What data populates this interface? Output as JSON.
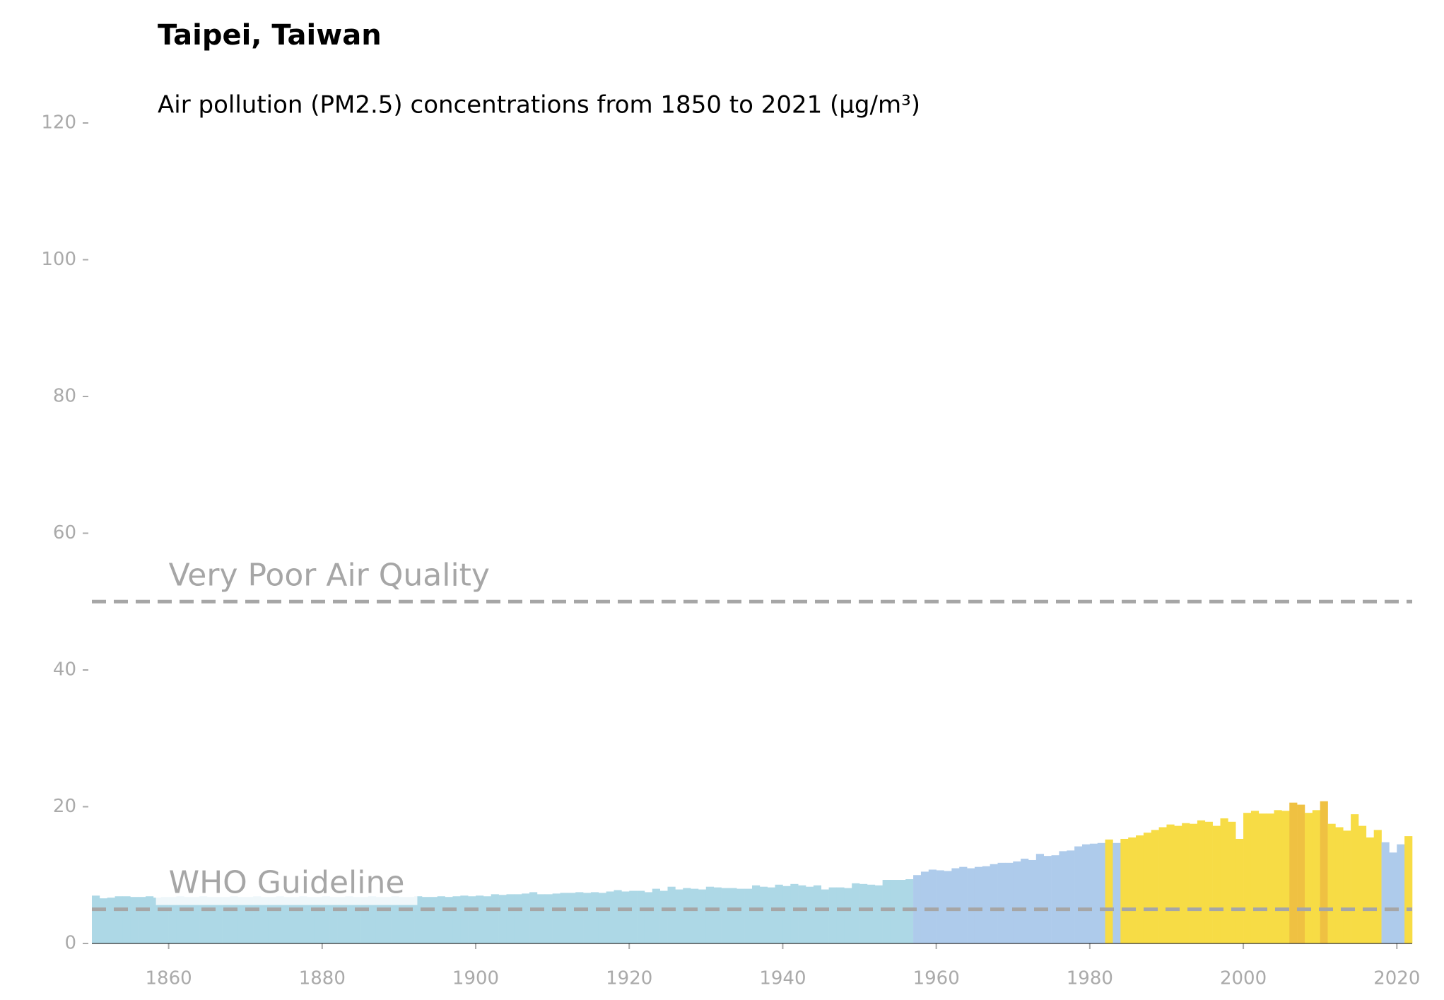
{
  "chart_data": {
    "type": "bar",
    "title": "Taipei, Taiwan",
    "subtitle": "Air pollution (PM2.5) concentrations from 1850 to 2021 (µg/m³)",
    "x": [
      1850,
      1851,
      1852,
      1853,
      1854,
      1855,
      1856,
      1857,
      1858,
      1859,
      1860,
      1861,
      1862,
      1863,
      1864,
      1865,
      1866,
      1867,
      1868,
      1869,
      1870,
      1871,
      1872,
      1873,
      1874,
      1875,
      1876,
      1877,
      1878,
      1879,
      1880,
      1881,
      1882,
      1883,
      1884,
      1885,
      1886,
      1887,
      1888,
      1889,
      1890,
      1891,
      1892,
      1893,
      1894,
      1895,
      1896,
      1897,
      1898,
      1899,
      1900,
      1901,
      1902,
      1903,
      1904,
      1905,
      1906,
      1907,
      1908,
      1909,
      1910,
      1911,
      1912,
      1913,
      1914,
      1915,
      1916,
      1917,
      1918,
      1919,
      1920,
      1921,
      1922,
      1923,
      1924,
      1925,
      1926,
      1927,
      1928,
      1929,
      1930,
      1931,
      1932,
      1933,
      1934,
      1935,
      1936,
      1937,
      1938,
      1939,
      1940,
      1941,
      1942,
      1943,
      1944,
      1945,
      1946,
      1947,
      1948,
      1949,
      1950,
      1951,
      1952,
      1953,
      1954,
      1955,
      1956,
      1957,
      1958,
      1959,
      1960,
      1961,
      1962,
      1963,
      1964,
      1965,
      1966,
      1967,
      1968,
      1969,
      1970,
      1971,
      1972,
      1973,
      1974,
      1975,
      1976,
      1977,
      1978,
      1979,
      1980,
      1981,
      1982,
      1983,
      1984,
      1985,
      1986,
      1987,
      1988,
      1989,
      1990,
      1991,
      1992,
      1993,
      1994,
      1995,
      1996,
      1997,
      1998,
      1999,
      2000,
      2001,
      2002,
      2003,
      2004,
      2005,
      2006,
      2007,
      2008,
      2009,
      2010,
      2011,
      2012,
      2013,
      2014,
      2015,
      2016,
      2017,
      2018,
      2019,
      2020,
      2021
    ],
    "values": [
      7.0,
      6.6,
      6.7,
      6.9,
      6.9,
      6.8,
      6.8,
      6.9,
      6.7,
      6.8,
      6.8,
      6.9,
      6.8,
      6.8,
      6.9,
      6.8,
      6.8,
      6.8,
      6.9,
      6.8,
      6.8,
      6.9,
      6.8,
      6.8,
      6.9,
      6.8,
      6.8,
      6.9,
      6.8,
      6.8,
      6.9,
      6.8,
      6.8,
      6.9,
      6.8,
      6.8,
      6.9,
      6.8,
      6.8,
      6.9,
      6.8,
      6.8,
      6.9,
      6.8,
      6.8,
      6.9,
      6.8,
      6.9,
      7.0,
      6.9,
      7.0,
      6.9,
      7.2,
      7.1,
      7.2,
      7.2,
      7.3,
      7.5,
      7.2,
      7.2,
      7.3,
      7.4,
      7.4,
      7.5,
      7.4,
      7.5,
      7.4,
      7.6,
      7.8,
      7.6,
      7.7,
      7.7,
      7.5,
      8.0,
      7.7,
      8.3,
      7.9,
      8.1,
      8.0,
      7.9,
      8.3,
      8.2,
      8.1,
      8.1,
      8.0,
      8.0,
      8.5,
      8.3,
      8.2,
      8.6,
      8.4,
      8.7,
      8.5,
      8.3,
      8.5,
      7.9,
      8.2,
      8.2,
      8.1,
      8.8,
      8.7,
      8.6,
      8.5,
      9.3,
      9.3,
      9.3,
      9.4,
      10.0,
      10.5,
      10.8,
      10.7,
      10.6,
      11.0,
      11.2,
      11.0,
      11.2,
      11.3,
      11.6,
      11.8,
      11.8,
      12.0,
      12.4,
      12.2,
      13.1,
      12.8,
      12.9,
      13.5,
      13.6,
      14.2,
      14.5,
      14.6,
      14.7,
      15.2,
      14.7,
      15.3,
      15.5,
      15.8,
      16.2,
      16.6,
      17.0,
      17.4,
      17.2,
      17.6,
      17.5,
      18.0,
      17.8,
      17.2,
      18.3,
      17.8,
      15.3,
      19.1,
      19.4,
      19.0,
      19.0,
      19.5,
      19.4,
      20.6,
      20.3,
      19.1,
      19.5,
      20.8,
      17.5,
      17.0,
      16.5,
      18.9,
      17.2,
      15.5,
      16.6,
      14.8,
      13.3,
      14.5,
      15.7
    ],
    "colors": [
      "#add8e6",
      "#add8e6",
      "#add8e6",
      "#add8e6",
      "#add8e6",
      "#add8e6",
      "#add8e6",
      "#add8e6",
      "#add8e6",
      "#add8e6",
      "#add8e6",
      "#add8e6",
      "#add8e6",
      "#add8e6",
      "#add8e6",
      "#add8e6",
      "#add8e6",
      "#add8e6",
      "#add8e6",
      "#add8e6",
      "#add8e6",
      "#add8e6",
      "#add8e6",
      "#add8e6",
      "#add8e6",
      "#add8e6",
      "#add8e6",
      "#add8e6",
      "#add8e6",
      "#add8e6",
      "#add8e6",
      "#add8e6",
      "#add8e6",
      "#add8e6",
      "#add8e6",
      "#add8e6",
      "#add8e6",
      "#add8e6",
      "#add8e6",
      "#add8e6",
      "#add8e6",
      "#add8e6",
      "#add8e6",
      "#add8e6",
      "#add8e6",
      "#add8e6",
      "#add8e6",
      "#add8e6",
      "#add8e6",
      "#add8e6",
      "#add8e6",
      "#add8e6",
      "#add8e6",
      "#add8e6",
      "#add8e6",
      "#add8e6",
      "#add8e6",
      "#add8e6",
      "#add8e6",
      "#add8e6",
      "#add8e6",
      "#add8e6",
      "#add8e6",
      "#add8e6",
      "#add8e6",
      "#add8e6",
      "#add8e6",
      "#add8e6",
      "#add8e6",
      "#add8e6",
      "#add8e6",
      "#add8e6",
      "#add8e6",
      "#add8e6",
      "#add8e6",
      "#add8e6",
      "#add8e6",
      "#add8e6",
      "#add8e6",
      "#add8e6",
      "#add8e6",
      "#add8e6",
      "#add8e6",
      "#add8e6",
      "#add8e6",
      "#add8e6",
      "#add8e6",
      "#add8e6",
      "#add8e6",
      "#add8e6",
      "#add8e6",
      "#add8e6",
      "#add8e6",
      "#add8e6",
      "#add8e6",
      "#add8e6",
      "#add8e6",
      "#add8e6",
      "#add8e6",
      "#add8e6",
      "#add8e6",
      "#add8e6",
      "#add8e6",
      "#add8e6",
      "#add8e6",
      "#add8e6",
      "#add8e6",
      "#aecbeb",
      "#aecbeb",
      "#aecbeb",
      "#aecbeb",
      "#aecbeb",
      "#aecbeb",
      "#aecbeb",
      "#aecbeb",
      "#aecbeb",
      "#aecbeb",
      "#aecbeb",
      "#aecbeb",
      "#aecbeb",
      "#aecbeb",
      "#aecbeb",
      "#aecbeb",
      "#aecbeb",
      "#aecbeb",
      "#aecbeb",
      "#aecbeb",
      "#aecbeb",
      "#aecbeb",
      "#aecbeb",
      "#aecbeb",
      "#aecbeb",
      "#f7dc45",
      "#aecbeb",
      "#f7dc45",
      "#f7dc45",
      "#f7dc45",
      "#f7dc45",
      "#f7dc45",
      "#f7dc45",
      "#f7dc45",
      "#f7dc45",
      "#f7dc45",
      "#f7dc45",
      "#f7dc45",
      "#f7dc45",
      "#f7dc45",
      "#f7dc45",
      "#f7dc45",
      "#f7dc45",
      "#f7dc45",
      "#f7dc45",
      "#f7dc45",
      "#f7dc45",
      "#f7dc45",
      "#f7dc45",
      "#efc142",
      "#efc142",
      "#f7dc45",
      "#f7dc45",
      "#efc142",
      "#f7dc45",
      "#f7dc45",
      "#f7dc45",
      "#f7dc45",
      "#f7dc45",
      "#f7dc45",
      "#f7dc45",
      "#aecbeb",
      "#aecbeb",
      "#aecbeb",
      "#f7dc45"
    ],
    "xlim": [
      1850,
      2022
    ],
    "ylim": [
      0,
      120
    ],
    "xticks": [
      1860,
      1880,
      1900,
      1920,
      1940,
      1960,
      1980,
      2000,
      2020
    ],
    "yticks": [
      0,
      20,
      40,
      60,
      80,
      100,
      120
    ],
    "reference_lines": [
      {
        "value": 50,
        "label": "Very Poor Air Quality"
      },
      {
        "value": 5,
        "label": "WHO Guideline"
      }
    ],
    "reference_color": "#a6a6a6"
  }
}
